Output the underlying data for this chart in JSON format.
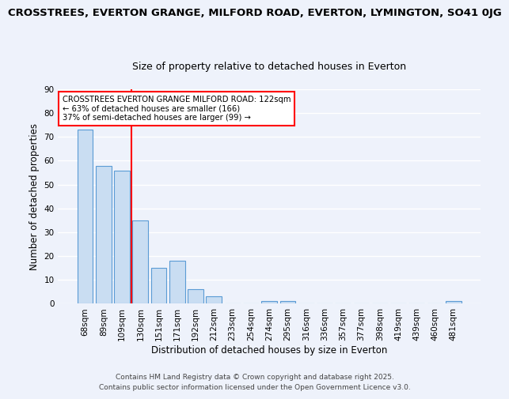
{
  "title_line1": "CROSSTREES, EVERTON GRANGE, MILFORD ROAD, EVERTON, LYMINGTON, SO41 0JG",
  "title_line2": "Size of property relative to detached houses in Everton",
  "xlabel": "Distribution of detached houses by size in Everton",
  "ylabel": "Number of detached properties",
  "bar_labels": [
    "68sqm",
    "89sqm",
    "109sqm",
    "130sqm",
    "151sqm",
    "171sqm",
    "192sqm",
    "212sqm",
    "233sqm",
    "254sqm",
    "274sqm",
    "295sqm",
    "316sqm",
    "336sqm",
    "357sqm",
    "377sqm",
    "398sqm",
    "419sqm",
    "439sqm",
    "460sqm",
    "481sqm"
  ],
  "bar_values": [
    73,
    58,
    56,
    35,
    15,
    18,
    6,
    3,
    0,
    0,
    1,
    1,
    0,
    0,
    0,
    0,
    0,
    0,
    0,
    0,
    1
  ],
  "bar_color": "#c9ddf2",
  "bar_edge_color": "#5b9bd5",
  "vline_x": 2.5,
  "vline_color": "red",
  "ylim": [
    0,
    90
  ],
  "yticks": [
    0,
    10,
    20,
    30,
    40,
    50,
    60,
    70,
    80,
    90
  ],
  "annotation_box_text_line1": "CROSSTREES EVERTON GRANGE MILFORD ROAD: 122sqm",
  "annotation_box_text_line2": "← 63% of detached houses are smaller (166)",
  "annotation_box_text_line3": "37% of semi-detached houses are larger (99) →",
  "footer_line1": "Contains HM Land Registry data © Crown copyright and database right 2025.",
  "footer_line2": "Contains public sector information licensed under the Open Government Licence v3.0.",
  "background_color": "#eef2fb",
  "grid_color": "#ffffff",
  "title1_fontsize": 9.5,
  "title2_fontsize": 9,
  "axis_label_fontsize": 8.5,
  "tick_fontsize": 7.5,
  "ann_fontsize": 7.2,
  "footer_fontsize": 6.5
}
